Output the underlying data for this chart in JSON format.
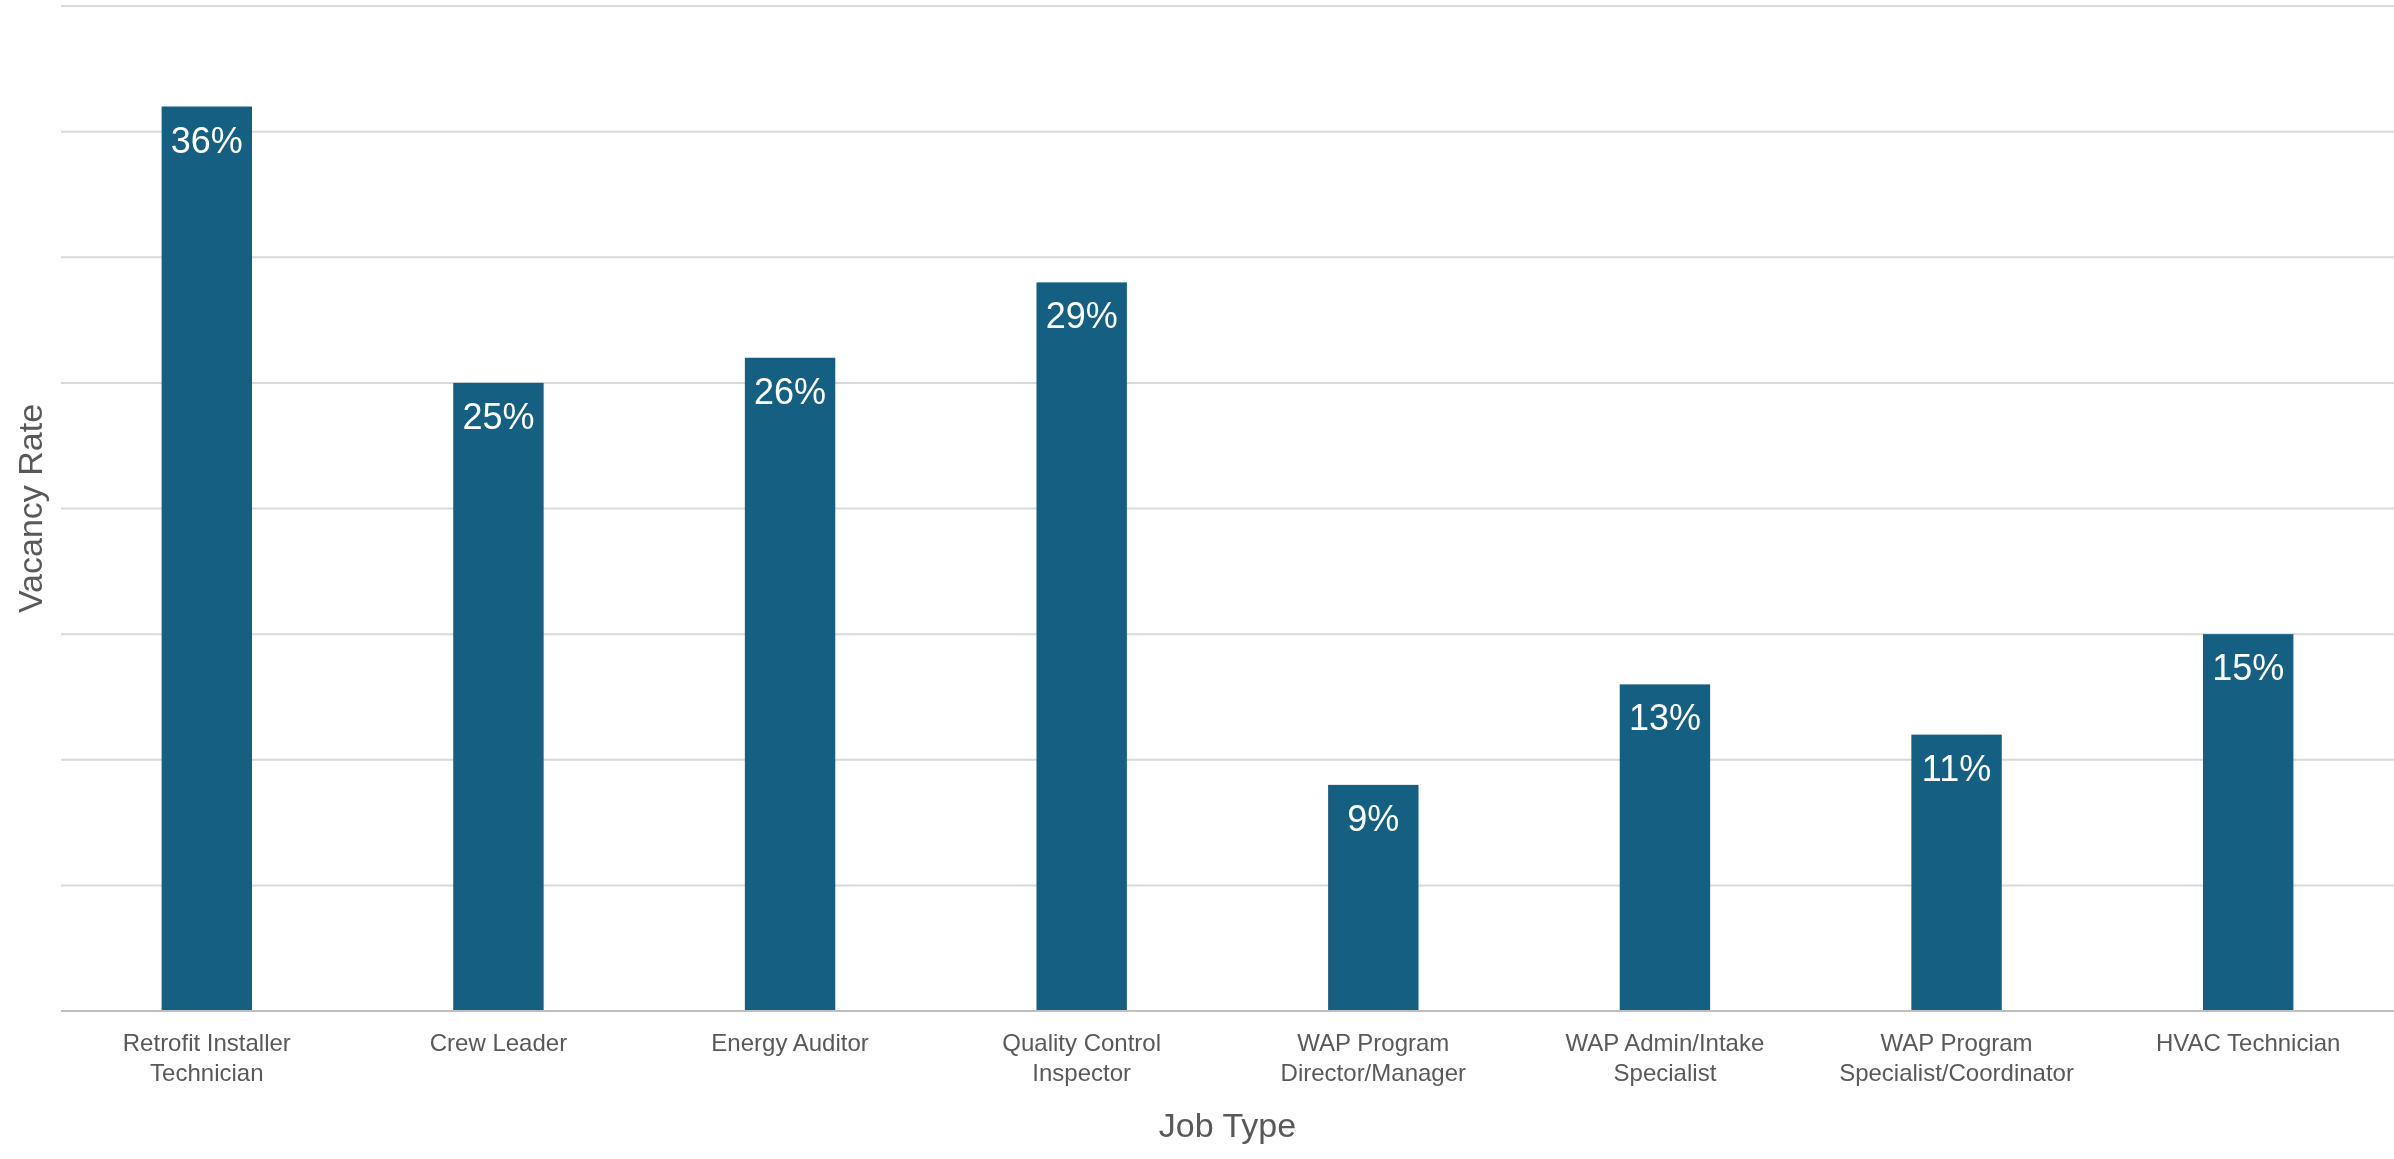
{
  "chart_data": {
    "type": "bar",
    "xlabel": "Job Type",
    "ylabel": "Vacancy Rate",
    "categories": [
      "Retrofit Installer Technician",
      "Crew Leader",
      "Energy Auditor",
      "Quality Control Inspector",
      "WAP Program Director/Manager",
      "WAP Admin/Intake Specialist",
      "WAP Program Specialist/Coordinator",
      "HVAC Technician"
    ],
    "values": [
      36,
      25,
      26,
      29,
      9,
      13,
      11,
      15
    ],
    "value_labels": [
      "36%",
      "25%",
      "26%",
      "29%",
      "9%",
      "13%",
      "11%",
      "15%"
    ],
    "color": "#156082",
    "ylim": [
      0,
      40
    ],
    "yticks": [
      {
        "value": 0,
        "label": null
      },
      {
        "value": 5,
        "label": null
      },
      {
        "value": 10,
        "label": null
      },
      {
        "value": 15,
        "label": null
      },
      {
        "value": 20,
        "label": null
      },
      {
        "value": 25,
        "label": null
      },
      {
        "value": 30,
        "label": null
      },
      {
        "value": 35,
        "label": null
      },
      {
        "value": 40,
        "label": null
      }
    ],
    "grid": "y",
    "tick_labels": "x"
  }
}
